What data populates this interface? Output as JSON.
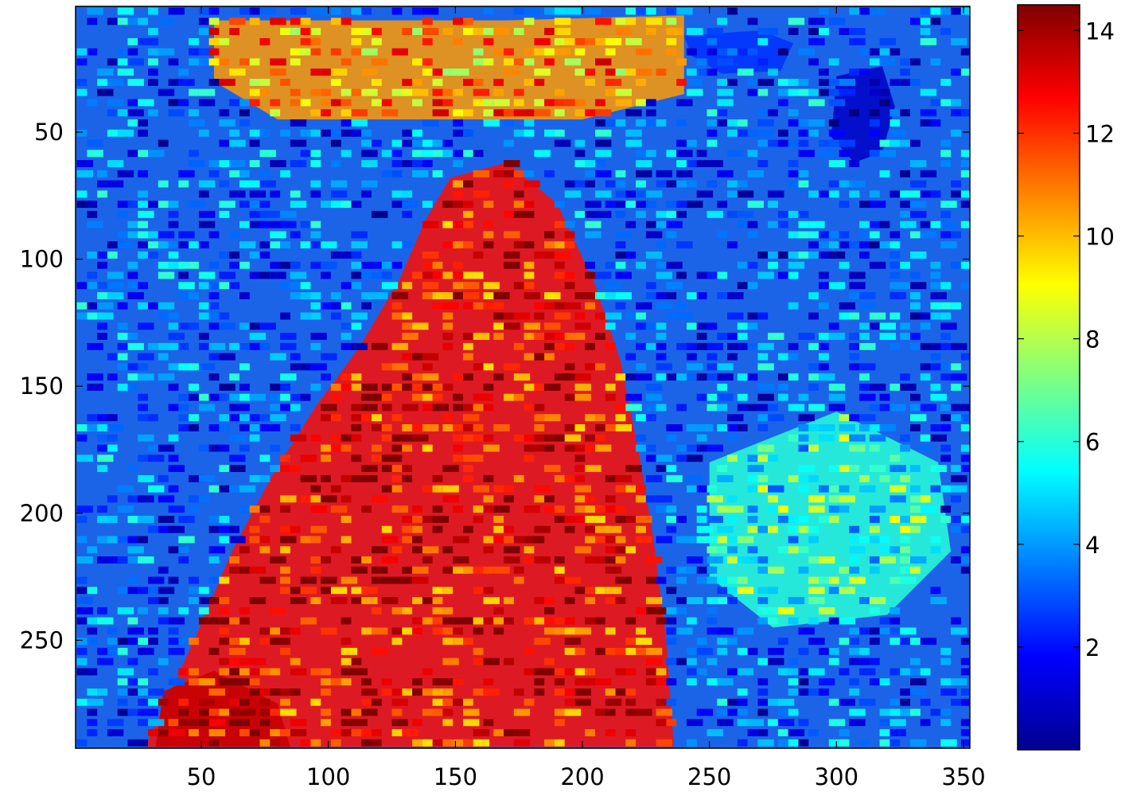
{
  "chart_data": {
    "type": "heatmap",
    "title": "",
    "xlabel": "",
    "ylabel": "",
    "xlim": [
      0.5,
      352.5
    ],
    "ylim": [
      0.5,
      292.5
    ],
    "y_reversed": true,
    "xticks": [
      50,
      100,
      150,
      200,
      250,
      300,
      350
    ],
    "yticks": [
      50,
      100,
      150,
      200,
      250
    ],
    "colormap": "jet",
    "colorbar": {
      "clim": [
        0,
        14.5
      ],
      "ticks": [
        2,
        4,
        6,
        8,
        10,
        12,
        14
      ],
      "location": "right"
    },
    "value_regions": [
      {
        "shape": "polygon",
        "value": 12.5,
        "points": [
          [
            28,
            292
          ],
          [
            48,
            248
          ],
          [
            62,
            215
          ],
          [
            78,
            185
          ],
          [
            95,
            158
          ],
          [
            112,
            135
          ],
          [
            128,
            108
          ],
          [
            138,
            85
          ],
          [
            148,
            68
          ],
          [
            170,
            62
          ],
          [
            190,
            78
          ],
          [
            205,
            110
          ],
          [
            215,
            140
          ],
          [
            222,
            175
          ],
          [
            228,
            210
          ],
          [
            233,
            250
          ],
          [
            236,
            292
          ]
        ]
      },
      {
        "shape": "polygon",
        "value": 13.5,
        "points": [
          [
            32,
            292
          ],
          [
            35,
            270
          ],
          [
            55,
            262
          ],
          [
            80,
            275
          ],
          [
            85,
            292
          ]
        ]
      },
      {
        "shape": "polygon",
        "value": 10.5,
        "points": [
          [
            55,
            6
          ],
          [
            170,
            6
          ],
          [
            240,
            4
          ],
          [
            240,
            35
          ],
          [
            200,
            45
          ],
          [
            150,
            45
          ],
          [
            80,
            45
          ],
          [
            55,
            30
          ]
        ]
      },
      {
        "shape": "polygon",
        "value": 1.0,
        "points": [
          [
            300,
            28
          ],
          [
            318,
            24
          ],
          [
            323,
            40
          ],
          [
            318,
            58
          ],
          [
            307,
            62
          ],
          [
            298,
            52
          ]
        ]
      },
      {
        "shape": "polygon",
        "value": 2.5,
        "points": [
          [
            240,
            12
          ],
          [
            270,
            10
          ],
          [
            283,
            15
          ],
          [
            278,
            26
          ],
          [
            255,
            27
          ],
          [
            243,
            20
          ]
        ]
      },
      {
        "shape": "polygon",
        "value": 6.0,
        "points": [
          [
            250,
            180
          ],
          [
            300,
            160
          ],
          [
            340,
            180
          ],
          [
            345,
            215
          ],
          [
            320,
            240
          ],
          [
            275,
            245
          ],
          [
            250,
            225
          ]
        ]
      }
    ]
  }
}
